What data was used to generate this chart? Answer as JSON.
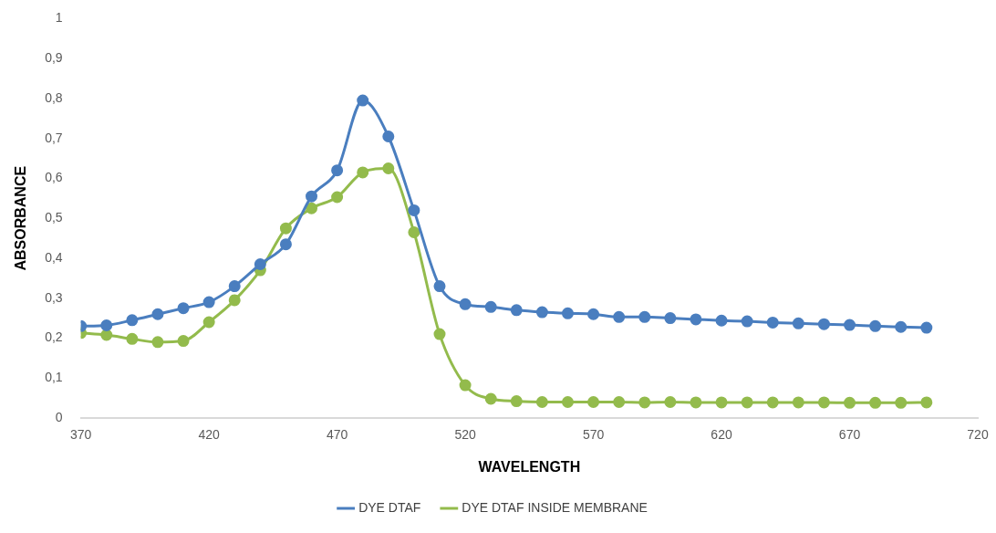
{
  "chart_data": {
    "type": "line",
    "xlabel": "WAVELENGTH",
    "ylabel": "ABSORBANCE",
    "x": [
      370,
      380,
      390,
      400,
      410,
      420,
      430,
      440,
      450,
      460,
      470,
      480,
      490,
      500,
      510,
      520,
      530,
      540,
      550,
      560,
      570,
      580,
      590,
      600,
      610,
      620,
      630,
      640,
      650,
      660,
      670,
      680,
      690,
      700
    ],
    "series": [
      {
        "name": "DYE DTAF",
        "color": "#4a7ebf",
        "values": [
          0.23,
          0.232,
          0.245,
          0.26,
          0.275,
          0.29,
          0.33,
          0.385,
          0.435,
          0.555,
          0.62,
          0.795,
          0.705,
          0.52,
          0.33,
          0.285,
          0.278,
          0.27,
          0.265,
          0.262,
          0.26,
          0.253,
          0.253,
          0.25,
          0.247,
          0.244,
          0.242,
          0.239,
          0.237,
          0.235,
          0.233,
          0.23,
          0.228,
          0.226
        ]
      },
      {
        "name": "DYE DTAF INSIDE MEMBRANE",
        "color": "#93bb4c",
        "values": [
          0.213,
          0.208,
          0.198,
          0.19,
          0.193,
          0.24,
          0.295,
          0.37,
          0.475,
          0.525,
          0.553,
          0.615,
          0.625,
          0.465,
          0.21,
          0.082,
          0.048,
          0.042,
          0.04,
          0.04,
          0.04,
          0.04,
          0.039,
          0.04,
          0.039,
          0.039,
          0.039,
          0.039,
          0.039,
          0.039,
          0.038,
          0.038,
          0.038,
          0.039
        ]
      }
    ],
    "xlim": [
      370,
      720
    ],
    "xticks": [
      370,
      420,
      470,
      520,
      570,
      620,
      670,
      720
    ],
    "ylim": [
      0,
      1
    ],
    "yticks": [
      0,
      {
        "value": 0.1,
        "label": "0,1"
      },
      {
        "value": 0.2,
        "label": "0,2"
      },
      {
        "value": 0.3,
        "label": "0,3"
      },
      {
        "value": 0.4,
        "label": "0,4"
      },
      {
        "value": 0.5,
        "label": "0,5"
      },
      {
        "value": 0.6,
        "label": "0,6"
      },
      {
        "value": 0.7,
        "label": "0,7"
      },
      {
        "value": 0.8,
        "label": "0,8"
      },
      {
        "value": 0.9,
        "label": "0,9"
      },
      1
    ],
    "grid": false,
    "legend": "bottom",
    "marker": "circle",
    "line_style": "solid"
  }
}
